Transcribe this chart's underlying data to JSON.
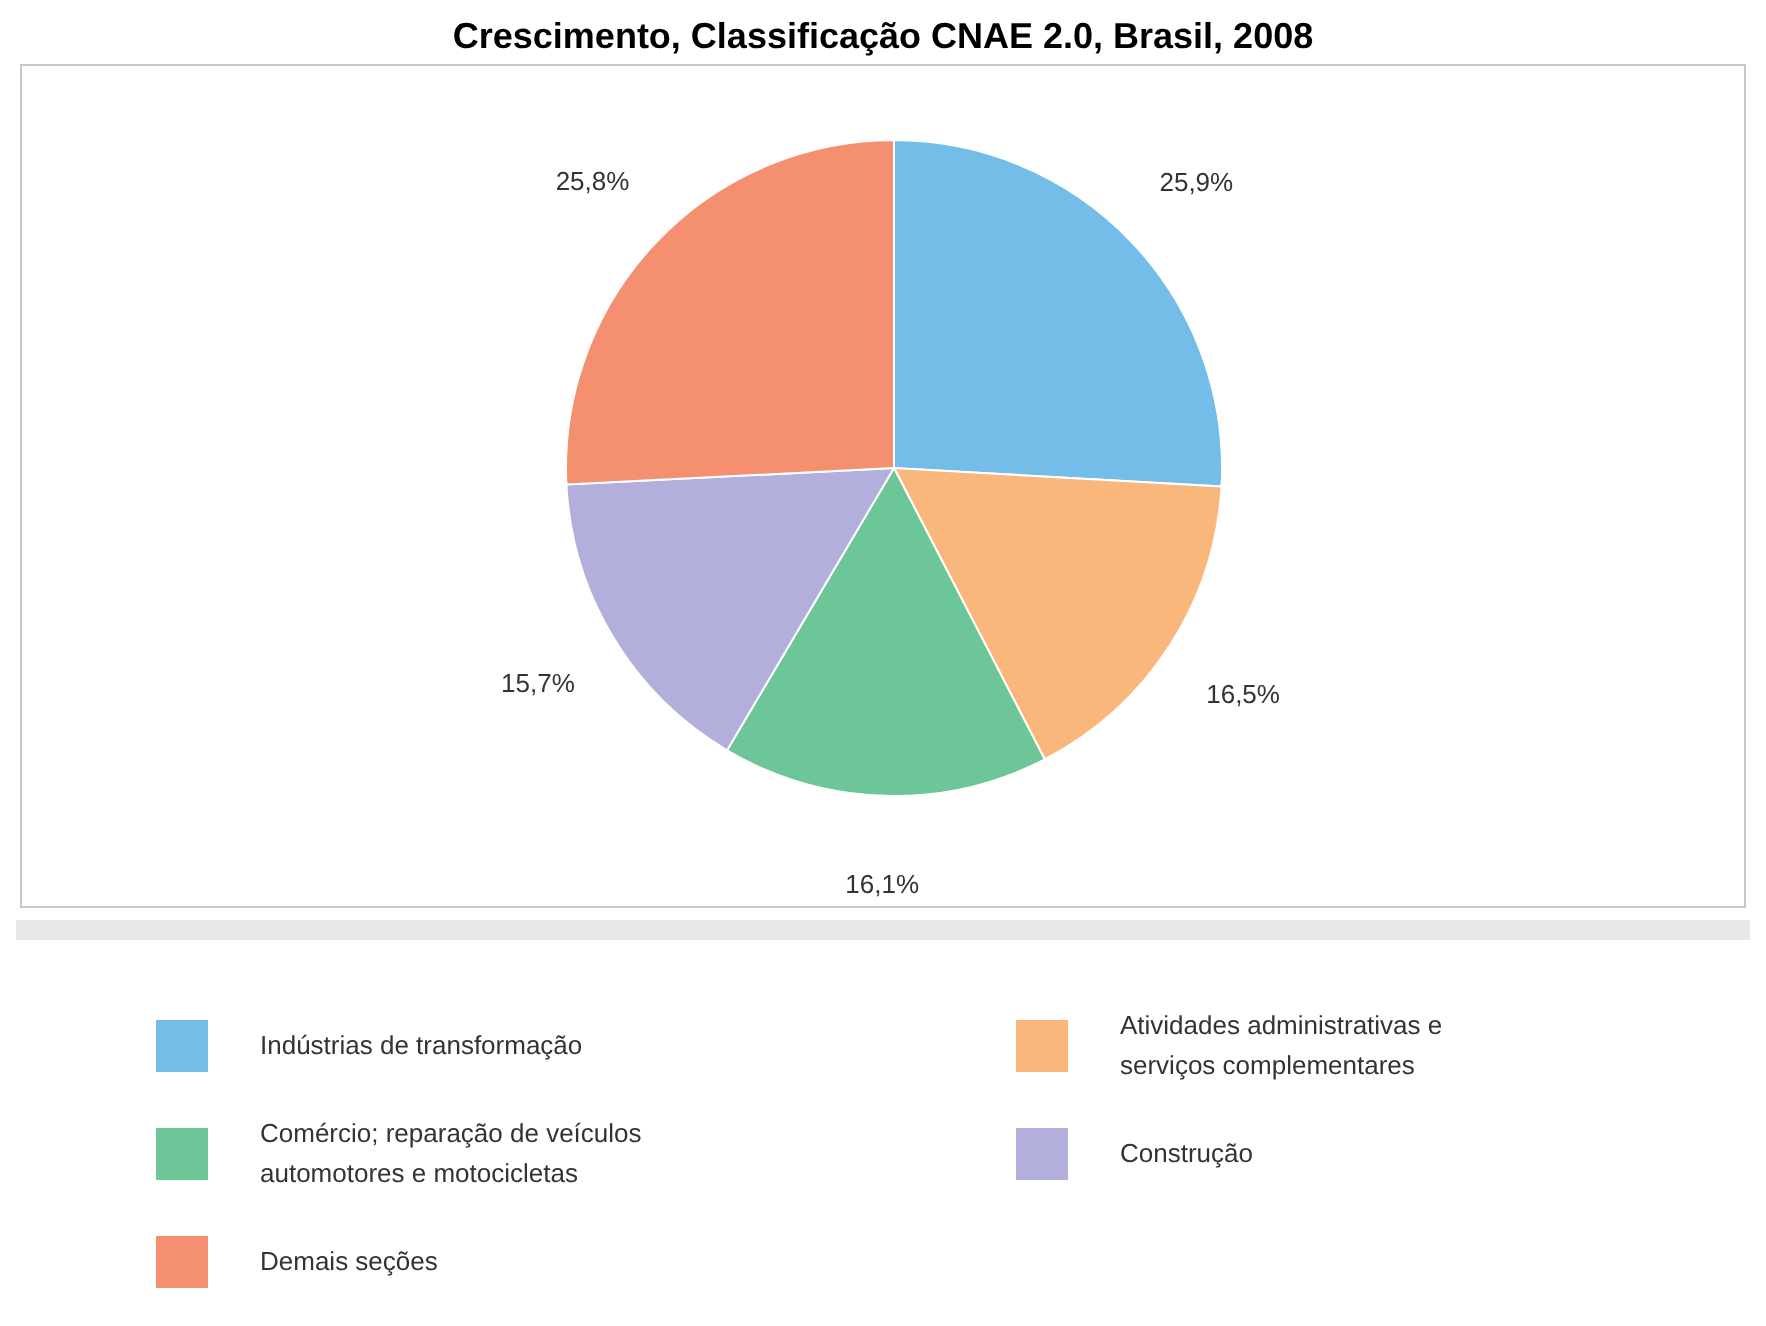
{
  "chart_data": {
    "type": "pie",
    "title": "Crescimento, Classificação CNAE 2.0, Brasil, 2008",
    "categories": [
      "Indústrias de transformação",
      "Atividades administrativas e serviços complementares",
      "Comércio; reparação de veículos automotores e motocicletas",
      "Construção",
      "Demais seções"
    ],
    "values": [
      25.9,
      16.5,
      16.1,
      15.7,
      25.8
    ],
    "colors": [
      "#74bde8",
      "#f9b77c",
      "#6cc697",
      "#b3afdc",
      "#f4906f"
    ],
    "value_labels": [
      "25,9%",
      "16,5%",
      "16,1%",
      "15,7%",
      "25,8%"
    ],
    "legend": "bottom"
  }
}
